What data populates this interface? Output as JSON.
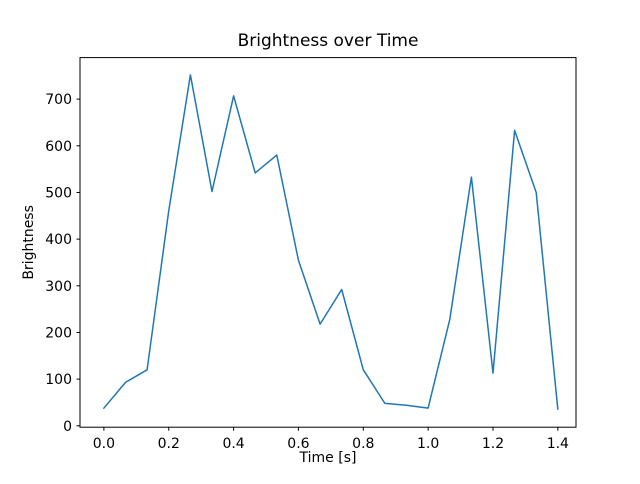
{
  "figure": {
    "title": "Brightness over Time",
    "xlabel": "Time [s]",
    "ylabel": "Brightness"
  },
  "chart_data": {
    "type": "line",
    "title": "Brightness over Time",
    "xlabel": "Time [s]",
    "ylabel": "Brightness",
    "x": [
      0.0,
      0.0667,
      0.1333,
      0.2,
      0.2667,
      0.3333,
      0.4,
      0.4667,
      0.5333,
      0.6,
      0.6667,
      0.7333,
      0.8,
      0.8667,
      0.9333,
      1.0,
      1.0667,
      1.1333,
      1.2,
      1.2667,
      1.3333,
      1.4
    ],
    "y": [
      38,
      93,
      120,
      460,
      752,
      502,
      707,
      542,
      580,
      355,
      218,
      292,
      120,
      48,
      44,
      38,
      228,
      533,
      113,
      633,
      500,
      36
    ],
    "series_name": "Brightness",
    "line_color": "#1f77b4",
    "line_width": 1.5,
    "xticks": [
      0.0,
      0.2,
      0.4,
      0.6,
      0.8,
      1.0,
      1.2,
      1.4
    ],
    "xtick_labels": [
      "0.0",
      "0.2",
      "0.4",
      "0.6",
      "0.8",
      "1.0",
      "1.2",
      "1.4"
    ],
    "yticks": [
      0,
      100,
      200,
      300,
      400,
      500,
      600,
      700
    ],
    "ytick_labels": [
      "0",
      "100",
      "200",
      "300",
      "400",
      "500",
      "600",
      "700"
    ],
    "xlim": [
      -0.0737,
      1.456
    ],
    "ylim": [
      -3,
      789
    ],
    "grid": false,
    "legend": null,
    "axis_color": "#000000",
    "background_color": "#ffffff"
  }
}
